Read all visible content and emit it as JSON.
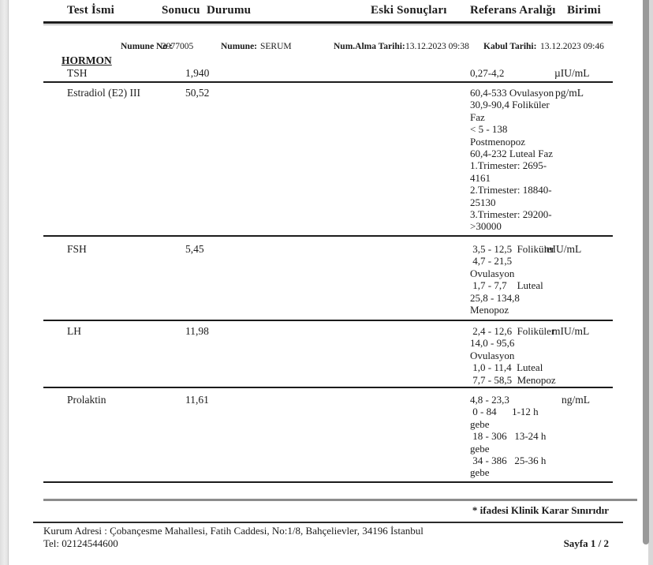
{
  "header": {
    "columns": [
      "Test İsmi",
      "Sonucu",
      "Durumu",
      "Eski Sonuçları",
      "Referans Aralığı",
      "Birimi"
    ]
  },
  "specimen": {
    "numune_no_label": "Numune No :",
    "numune_no_value": "2977005",
    "numune_label": "Numune:",
    "numune_value": "SERUM",
    "alma_label": "Num.Alma Tarihi:",
    "alma_value": "13.12.2023 09:38",
    "kabul_label": "Kabul Tarihi:",
    "kabul_value": "13.12.2023 09:46"
  },
  "section": {
    "title": "HORMON"
  },
  "rows": [
    {
      "name": "TSH",
      "result": "1,940",
      "reference": "0,27-4,2",
      "unit": "µIU/mL"
    },
    {
      "name": "Estradiol (E2) III",
      "result": "50,52",
      "reference": "60,4-533 Ovulasyon\n30,9-90,4 Foliküler\nFaz\n< 5 - 138\nPostmenopoz\n60,4-232 Luteal Faz\n1.Trimester: 2695-\n4161\n2.Trimester: 18840-\n25130\n3.Trimester: 29200-\n>30000",
      "unit": "pg/mL"
    },
    {
      "name": "FSH",
      "result": "5,45",
      "reference": " 3,5 - 12,5  Foliküler\n 4,7 - 21,5\nOvulasyon\n 1,7 - 7,7    Luteal\n25,8 - 134,8\nMenopoz",
      "unit": "mIU/mL"
    },
    {
      "name": "LH",
      "result": "11,98",
      "reference": " 2,4 - 12,6  Foliküler\n14,0 - 95,6\nOvulasyon\n 1,0 - 11,4  Luteal\n 7,7 - 58,5  Menopoz",
      "unit": "mIU/mL"
    },
    {
      "name": "Prolaktin",
      "result": "11,61",
      "reference": "4,8 - 23,3\n 0 - 84      1-12 h\ngebe\n 18 - 306   13-24 h\ngebe\n 34 - 386   25-36 h\ngebe",
      "unit": "ng/mL"
    }
  ],
  "footer": {
    "note": "* ifadesi Klinik Karar Sınırıdır",
    "address": "Kurum Adresi : Çobançesme Mahallesi, Fatih Caddesi, No:1/8, Bahçelievler, 34196 İstanbul",
    "phone": "Tel: 02124544600",
    "page": "Sayfa 1 / 2"
  }
}
